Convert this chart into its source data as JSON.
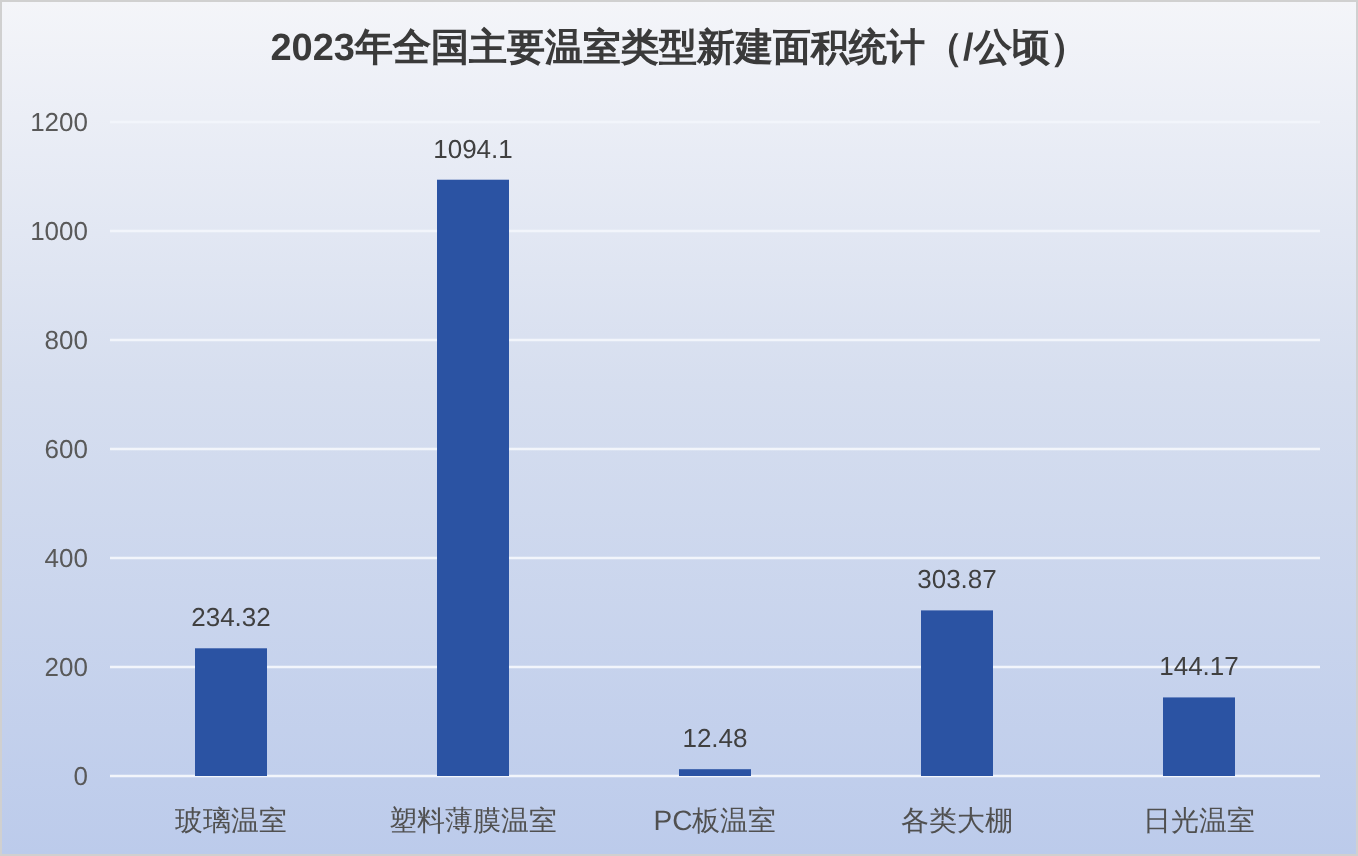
{
  "chart_data": {
    "type": "bar",
    "title": "2023年全国主要温室类型新建面积统计（/公顷）",
    "categories": [
      "玻璃温室",
      "塑料薄膜温室",
      "PC板温室",
      "各类大棚",
      "日光温室"
    ],
    "values": [
      234.32,
      1094.1,
      12.48,
      303.87,
      144.17
    ],
    "color": "#2b53a3",
    "ylim": [
      0,
      1200
    ],
    "yticks": [
      0,
      200,
      400,
      600,
      800,
      1000,
      1200
    ],
    "grid": "y",
    "data_labels": true
  }
}
